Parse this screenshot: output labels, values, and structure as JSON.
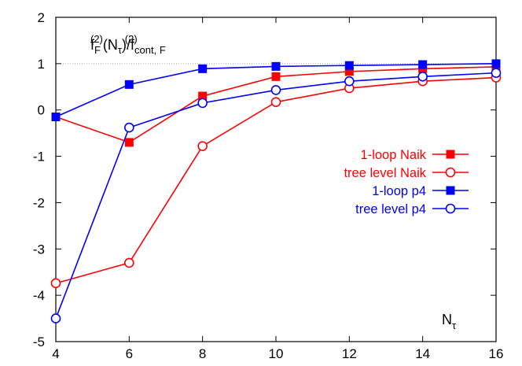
{
  "chart_data": {
    "type": "line",
    "title": "",
    "ylabel_annotation": {
      "main": "f",
      "sub1": "F",
      "sup1": "(2)",
      "mid": "(N",
      "sub2": "τ",
      "mid2": ")/f",
      "sub3": "cont, F",
      "sup3": "(2)"
    },
    "xlabel_annotation": {
      "main": "N",
      "sub": "τ"
    },
    "xlim": [
      4,
      16
    ],
    "ylim": [
      -5,
      2
    ],
    "xticks": [
      "4",
      "6",
      "8",
      "10",
      "12",
      "14",
      "16"
    ],
    "yticks": [
      "-5",
      "-4",
      "-3",
      "-2",
      "-1",
      "0",
      "1",
      "2"
    ],
    "reference_line": {
      "y": 1,
      "style": "dotted"
    },
    "legend_position": "center-right",
    "series": [
      {
        "name": "1-loop Naik",
        "color": "#ff0000",
        "marker": "filled-square",
        "x": [
          4,
          6,
          8,
          10,
          12,
          14,
          16
        ],
        "values": [
          -0.15,
          -0.7,
          0.3,
          0.72,
          0.83,
          0.89,
          0.93
        ]
      },
      {
        "name": "tree level Naik",
        "color": "#ff0000",
        "marker": "open-circle",
        "x": [
          4,
          6,
          8,
          10,
          12,
          14,
          16
        ],
        "values": [
          -3.74,
          -3.3,
          -0.78,
          0.17,
          0.47,
          0.62,
          0.7
        ]
      },
      {
        "name": "1-loop p4",
        "color": "#0000ff",
        "marker": "filled-square",
        "x": [
          4,
          6,
          8,
          10,
          12,
          14,
          16
        ],
        "values": [
          -0.15,
          0.55,
          0.89,
          0.94,
          0.96,
          0.98,
          1.0
        ]
      },
      {
        "name": "tree level p4",
        "color": "#0000ff",
        "marker": "open-circle",
        "x": [
          4,
          6,
          8,
          10,
          12,
          14,
          16
        ],
        "values": [
          -4.5,
          -0.38,
          0.15,
          0.43,
          0.62,
          0.72,
          0.8
        ]
      }
    ]
  }
}
